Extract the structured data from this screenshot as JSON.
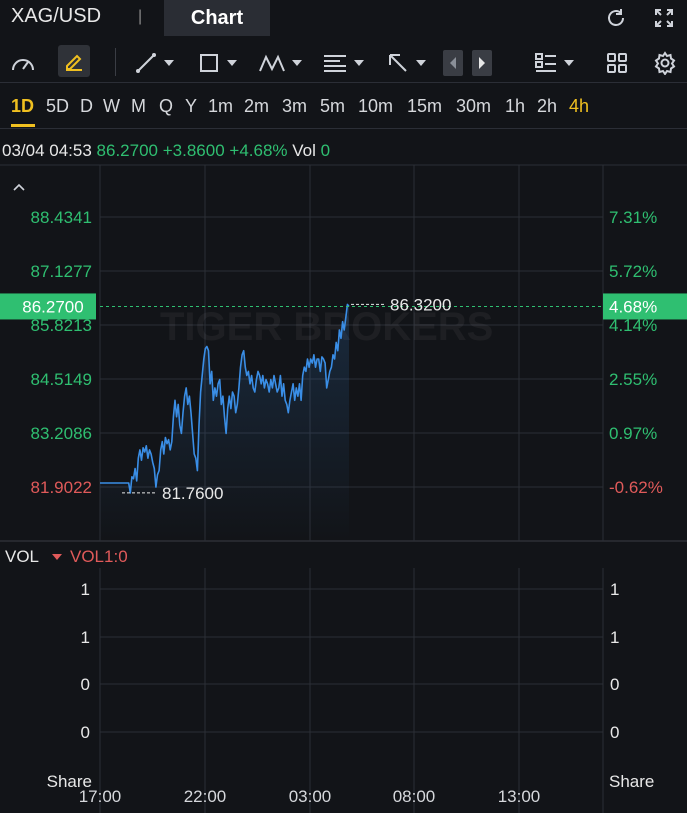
{
  "header": {
    "symbol": "XAG/USD",
    "separator": "|",
    "active_tab": "Chart"
  },
  "toolbar": {
    "tools": [
      "gauge-icon",
      "pencil-icon",
      "line-tool-icon",
      "rectangle-tool-icon",
      "pattern-tool-icon",
      "text-tool-icon",
      "arrow-tool-icon",
      "prev-icon",
      "next-icon",
      "layout-icon",
      "grid-icon",
      "settings-icon"
    ]
  },
  "periods": [
    "1D",
    "5D",
    "D",
    "W",
    "M",
    "Q",
    "Y",
    "1m",
    "2m",
    "3m",
    "5m",
    "10m",
    "15m",
    "30m",
    "1h",
    "2h",
    "4h"
  ],
  "active_period": "1D",
  "quote": {
    "datetime": "03/04 04:53",
    "price": "86.2700",
    "change": "+3.8600",
    "change_pct": "+4.68%",
    "vol_label": "Vol",
    "vol_value": "0"
  },
  "chart_data": {
    "type": "line",
    "y_ticks_left": [
      "88.4341",
      "87.1277",
      "85.8213",
      "84.5149",
      "83.2086",
      "81.9022"
    ],
    "y_ticks_right": [
      "7.31%",
      "5.72%",
      "4.14%",
      "2.55%",
      "0.97%",
      "-0.62%"
    ],
    "x_ticks": [
      "17:00",
      "22:00",
      "03:00",
      "08:00",
      "13:00"
    ],
    "current_price_label": "86.2700",
    "current_pct_label": "4.68%",
    "high_label": "86.3200",
    "low_label": "81.7600",
    "ylim": [
      81.9022,
      88.4341
    ],
    "series": [
      {
        "values": [
          82.0,
          82.0,
          82.0,
          82.0,
          82.0,
          82.0,
          82.0,
          82.0,
          82.0,
          82.0,
          82.0,
          82.0,
          82.0,
          82.0,
          82.0,
          82.0,
          82.0,
          82.0,
          82.0,
          81.76,
          82.15,
          82.1,
          82.35,
          82.05,
          82.6,
          82.8,
          82.55,
          82.85,
          82.75,
          82.9,
          82.6,
          82.8,
          82.7,
          82.5,
          82.35,
          81.9,
          82.2,
          82.3,
          82.8,
          83.0,
          82.7,
          83.1,
          82.95,
          83.05,
          82.8,
          83.0,
          83.6,
          84.0,
          83.6,
          83.9,
          83.4,
          83.2,
          83.7,
          84.1,
          84.3,
          83.9,
          84.1,
          83.7,
          83.2,
          82.7,
          82.6,
          82.3,
          83.4,
          84.2,
          84.6,
          85.0,
          85.25,
          85.3,
          85.2,
          84.4,
          84.7,
          84.0,
          84.3,
          84.1,
          84.4,
          84.5,
          83.9,
          84.1,
          83.6,
          83.2,
          83.8,
          84.1,
          83.8,
          84.2,
          84.1,
          83.7,
          83.9,
          84.3,
          84.8,
          85.1,
          85.2,
          84.8,
          84.6,
          84.7,
          84.4,
          84.6,
          84.3,
          84.2,
          84.5,
          84.7,
          84.6,
          84.4,
          84.6,
          84.3,
          84.5,
          84.4,
          84.2,
          84.5,
          84.3,
          84.6,
          84.4,
          84.2,
          84.3,
          84.6,
          84.1,
          84.4,
          84.0,
          83.9,
          83.7,
          84.0,
          84.2,
          84.4,
          84.0,
          84.3,
          84.1,
          84.4,
          84.0,
          84.6,
          84.8,
          84.7,
          85.0,
          84.8,
          85.0,
          84.9,
          85.1,
          84.8,
          85.0,
          85.0,
          84.7,
          85.05,
          85.0,
          84.9,
          84.3,
          84.5,
          84.7,
          84.8,
          85.1,
          85.0,
          85.4,
          85.2,
          85.7,
          85.5,
          85.9,
          85.7,
          86.0,
          86.32,
          86.27
        ]
      }
    ],
    "vol_y_ticks": [
      "1",
      "1",
      "0",
      "0"
    ],
    "vol_unit": "Share"
  },
  "volume": {
    "title": "VOL",
    "indicator": "VOL1:0"
  },
  "watermark": "TIGER BROKERS",
  "colors": {
    "up": "#2fbf71",
    "down": "#e05a5a",
    "line": "#3a8ee6",
    "accent": "#f0c020",
    "background": "#121418"
  }
}
